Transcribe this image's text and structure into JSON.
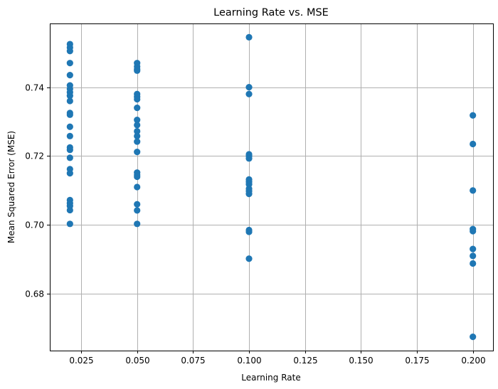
{
  "chart_data": {
    "type": "scatter",
    "title": "Learning Rate vs. MSE",
    "xlabel": "Learning Rate",
    "ylabel": "Mean Squared Error (MSE)",
    "xlim": [
      0.011,
      0.209
    ],
    "ylim": [
      0.6635,
      0.7585
    ],
    "grid": true,
    "marker_color": "#1f77b4",
    "x_ticks": [
      {
        "value": 0.025,
        "label": "0.025"
      },
      {
        "value": 0.05,
        "label": "0.050"
      },
      {
        "value": 0.075,
        "label": "0.075"
      },
      {
        "value": 0.1,
        "label": "0.100"
      },
      {
        "value": 0.125,
        "label": "0.125"
      },
      {
        "value": 0.15,
        "label": "0.150"
      },
      {
        "value": 0.175,
        "label": "0.175"
      },
      {
        "value": 0.2,
        "label": "0.200"
      }
    ],
    "y_ticks": [
      {
        "value": 0.68,
        "label": "0.68"
      },
      {
        "value": 0.7,
        "label": "0.70"
      },
      {
        "value": 0.72,
        "label": "0.72"
      },
      {
        "value": 0.74,
        "label": "0.74"
      }
    ],
    "points": [
      {
        "x": 0.02,
        "y": 0.7525
      },
      {
        "x": 0.02,
        "y": 0.7515
      },
      {
        "x": 0.02,
        "y": 0.7505
      },
      {
        "x": 0.02,
        "y": 0.747
      },
      {
        "x": 0.02,
        "y": 0.7435
      },
      {
        "x": 0.02,
        "y": 0.7405
      },
      {
        "x": 0.02,
        "y": 0.7395
      },
      {
        "x": 0.02,
        "y": 0.7385
      },
      {
        "x": 0.02,
        "y": 0.7375
      },
      {
        "x": 0.02,
        "y": 0.736
      },
      {
        "x": 0.02,
        "y": 0.7325
      },
      {
        "x": 0.02,
        "y": 0.732
      },
      {
        "x": 0.02,
        "y": 0.7285
      },
      {
        "x": 0.02,
        "y": 0.7258
      },
      {
        "x": 0.02,
        "y": 0.7225
      },
      {
        "x": 0.02,
        "y": 0.7218
      },
      {
        "x": 0.02,
        "y": 0.7195
      },
      {
        "x": 0.02,
        "y": 0.7162
      },
      {
        "x": 0.02,
        "y": 0.715
      },
      {
        "x": 0.02,
        "y": 0.7072
      },
      {
        "x": 0.02,
        "y": 0.7063
      },
      {
        "x": 0.02,
        "y": 0.7055
      },
      {
        "x": 0.02,
        "y": 0.7043
      },
      {
        "x": 0.02,
        "y": 0.7003
      },
      {
        "x": 0.05,
        "y": 0.747
      },
      {
        "x": 0.05,
        "y": 0.746
      },
      {
        "x": 0.05,
        "y": 0.7452
      },
      {
        "x": 0.05,
        "y": 0.7448
      },
      {
        "x": 0.05,
        "y": 0.738
      },
      {
        "x": 0.05,
        "y": 0.7372
      },
      {
        "x": 0.05,
        "y": 0.7365
      },
      {
        "x": 0.05,
        "y": 0.734
      },
      {
        "x": 0.05,
        "y": 0.7305
      },
      {
        "x": 0.05,
        "y": 0.729
      },
      {
        "x": 0.05,
        "y": 0.7272
      },
      {
        "x": 0.05,
        "y": 0.7258
      },
      {
        "x": 0.05,
        "y": 0.7242
      },
      {
        "x": 0.05,
        "y": 0.7212
      },
      {
        "x": 0.05,
        "y": 0.7152
      },
      {
        "x": 0.05,
        "y": 0.7145
      },
      {
        "x": 0.05,
        "y": 0.714
      },
      {
        "x": 0.05,
        "y": 0.711
      },
      {
        "x": 0.05,
        "y": 0.706
      },
      {
        "x": 0.05,
        "y": 0.7042
      },
      {
        "x": 0.05,
        "y": 0.7003
      },
      {
        "x": 0.1,
        "y": 0.7545
      },
      {
        "x": 0.1,
        "y": 0.74
      },
      {
        "x": 0.1,
        "y": 0.738
      },
      {
        "x": 0.1,
        "y": 0.7205
      },
      {
        "x": 0.1,
        "y": 0.72
      },
      {
        "x": 0.1,
        "y": 0.7193
      },
      {
        "x": 0.1,
        "y": 0.7132
      },
      {
        "x": 0.1,
        "y": 0.7125
      },
      {
        "x": 0.1,
        "y": 0.7118
      },
      {
        "x": 0.1,
        "y": 0.7105
      },
      {
        "x": 0.1,
        "y": 0.7098
      },
      {
        "x": 0.1,
        "y": 0.709
      },
      {
        "x": 0.1,
        "y": 0.6985
      },
      {
        "x": 0.1,
        "y": 0.698
      },
      {
        "x": 0.1,
        "y": 0.6902
      },
      {
        "x": 0.2,
        "y": 0.7318
      },
      {
        "x": 0.2,
        "y": 0.7235
      },
      {
        "x": 0.2,
        "y": 0.71
      },
      {
        "x": 0.2,
        "y": 0.6988
      },
      {
        "x": 0.2,
        "y": 0.6982
      },
      {
        "x": 0.2,
        "y": 0.693
      },
      {
        "x": 0.2,
        "y": 0.691
      },
      {
        "x": 0.2,
        "y": 0.6888
      },
      {
        "x": 0.2,
        "y": 0.6675
      }
    ]
  }
}
